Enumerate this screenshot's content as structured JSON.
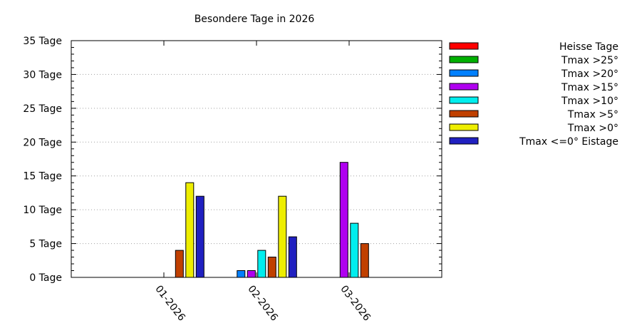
{
  "chart_data": {
    "type": "bar",
    "title": "Besondere Tage in 2026",
    "categories": [
      "01-2026",
      "02-2026",
      "03-2026"
    ],
    "ylim": [
      0,
      35
    ],
    "y_ticks": [
      0,
      5,
      10,
      15,
      20,
      25,
      30,
      35
    ],
    "y_tick_suffix": " Tage",
    "grid": "horizontal dotted",
    "legend": "right",
    "series": [
      {
        "name": "Heisse Tage",
        "color": "#ff0000",
        "values": [
          0,
          0,
          0
        ]
      },
      {
        "name": "Tmax >25°",
        "color": "#00b000",
        "values": [
          0,
          0,
          0
        ]
      },
      {
        "name": "Tmax >20°",
        "color": "#0080ff",
        "values": [
          0,
          1,
          0
        ]
      },
      {
        "name": "Tmax >15°",
        "color": "#b000f0",
        "values": [
          0,
          1,
          17
        ]
      },
      {
        "name": "Tmax >10°",
        "color": "#00eeee",
        "values": [
          0,
          4,
          8
        ]
      },
      {
        "name": "Tmax >5°",
        "color": "#c04000",
        "values": [
          4,
          3,
          5
        ]
      },
      {
        "name": "Tmax >0°",
        "color": "#eeee00",
        "values": [
          14,
          12,
          0
        ]
      },
      {
        "name": "Tmax <=0° Eistage",
        "color": "#2020c0",
        "values": [
          12,
          6,
          0
        ]
      }
    ]
  }
}
